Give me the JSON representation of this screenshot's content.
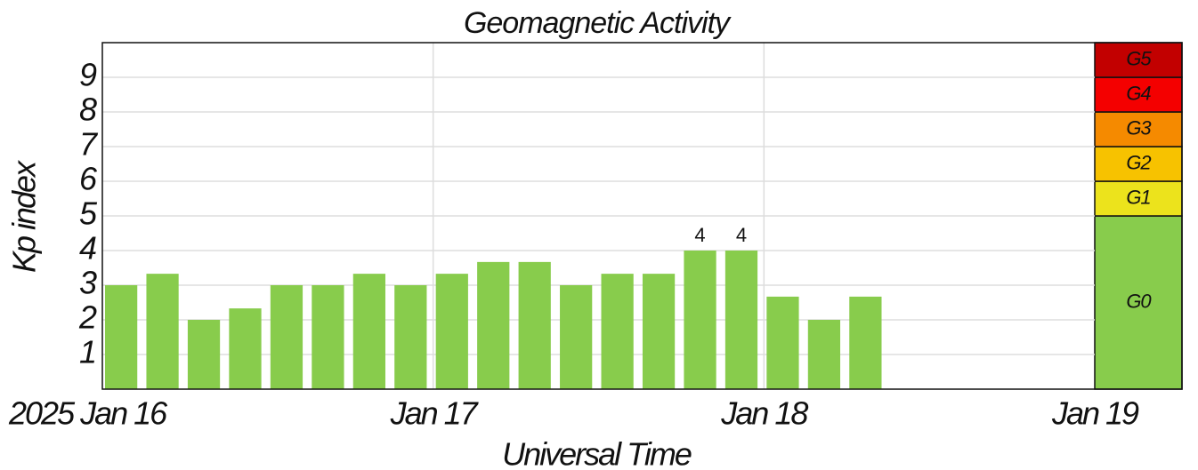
{
  "chart_data": {
    "type": "bar",
    "title": "Geomagnetic Activity",
    "y_label": "Kp index",
    "x_label": "Universal Time",
    "x": [
      0,
      0.125,
      0.25,
      0.375,
      0.5,
      0.625,
      0.75,
      0.875,
      1,
      1.125,
      1.25,
      1.375,
      1.5,
      1.625,
      1.75,
      1.875,
      2,
      2.125,
      2.25
    ],
    "values": [
      3,
      3.33,
      2,
      2.33,
      3,
      3,
      3.33,
      3,
      3.33,
      3.67,
      3.67,
      3,
      3.33,
      3.33,
      4,
      4,
      2.67,
      2,
      2.67
    ],
    "value_labels": [
      null,
      null,
      null,
      null,
      null,
      null,
      null,
      null,
      null,
      null,
      null,
      null,
      null,
      null,
      "4",
      "4",
      null,
      null,
      null
    ],
    "color": "#88cc4c",
    "xlim": [
      0,
      3
    ],
    "xticks": [
      {
        "value": 0,
        "label": "2025 Jan 16"
      },
      {
        "value": 1,
        "label": "Jan 17"
      },
      {
        "value": 2,
        "label": "Jan 18"
      },
      {
        "value": 3,
        "label": "Jan 19"
      }
    ],
    "ylim": [
      0,
      10
    ],
    "yticks": [
      1,
      2,
      3,
      4,
      5,
      6,
      7,
      8,
      9
    ],
    "grid": true,
    "scale": [
      {
        "label": "G0",
        "from": 0,
        "to": 5,
        "color": "#88cc4c"
      },
      {
        "label": "G1",
        "from": 5,
        "to": 6,
        "color": "#ece31c"
      },
      {
        "label": "G2",
        "from": 6,
        "to": 7,
        "color": "#f7c200"
      },
      {
        "label": "G3",
        "from": 7,
        "to": 8,
        "color": "#f58a00"
      },
      {
        "label": "G4",
        "from": 8,
        "to": 9,
        "color": "#f40000"
      },
      {
        "label": "G5",
        "from": 9,
        "to": 10,
        "color": "#c20000"
      }
    ]
  }
}
